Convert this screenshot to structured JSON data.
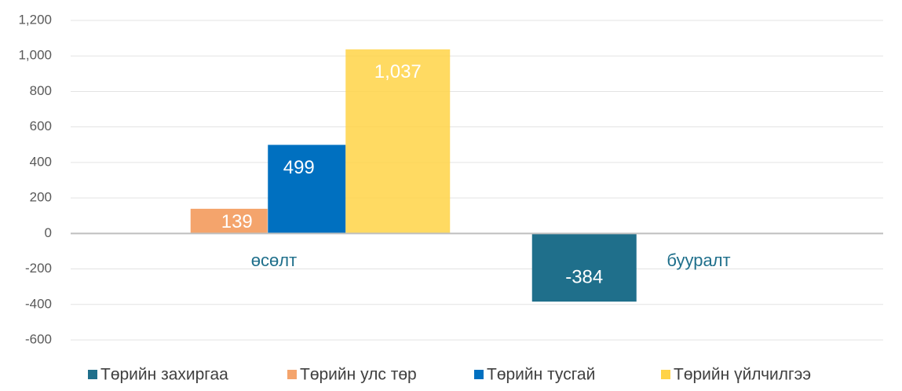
{
  "chart_data": {
    "type": "bar",
    "categories": [
      "өсөлт",
      "бууралт"
    ],
    "series": [
      {
        "name": "Төрийн захиргаа",
        "color": "#1f6f8b",
        "values": [
          null,
          -384
        ],
        "value_labels": [
          null,
          "-384"
        ]
      },
      {
        "name": "Төрийн улс төр",
        "color": "#f4a46c",
        "values": [
          139,
          null
        ],
        "value_labels": [
          "139",
          null
        ]
      },
      {
        "name": "Төрийн тусгай",
        "color": "#0070c0",
        "values": [
          499,
          null
        ],
        "value_labels": [
          "499",
          null
        ]
      },
      {
        "name": "Төрийн үйлчилгээ",
        "color": "#ffd347",
        "values": [
          1037,
          null
        ],
        "value_labels": [
          "1,037",
          null
        ]
      }
    ],
    "ylim": [
      -600,
      1200
    ],
    "yticks": [
      -600,
      -400,
      -200,
      0,
      200,
      400,
      600,
      800,
      {
        "value": 1000,
        "label": "1,000"
      },
      {
        "value": 1200,
        "label": "1,200"
      }
    ],
    "grid": true,
    "legend": "bottom"
  }
}
